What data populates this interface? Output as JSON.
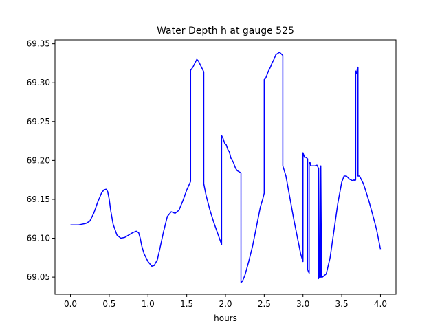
{
  "chart_data": {
    "type": "line",
    "title": "Water Depth h at gauge 525",
    "xlabel": "hours",
    "ylabel": "",
    "xlim": [
      -0.2,
      4.2
    ],
    "ylim": [
      69.028,
      69.355
    ],
    "x_ticks": [
      0.0,
      0.5,
      1.0,
      1.5,
      2.0,
      2.5,
      3.0,
      3.5,
      4.0
    ],
    "x_tick_labels": [
      "0.0",
      "0.5",
      "1.0",
      "1.5",
      "2.0",
      "2.5",
      "3.0",
      "3.5",
      "4.0"
    ],
    "y_ticks": [
      69.05,
      69.1,
      69.15,
      69.2,
      69.25,
      69.3,
      69.35
    ],
    "y_tick_labels": [
      "69.05",
      "69.10",
      "69.15",
      "69.20",
      "69.25",
      "69.30",
      "69.35"
    ],
    "grid": false,
    "legend": "none",
    "series": [
      {
        "color": "#0000ff",
        "x": [
          0.0,
          0.1,
          0.2,
          0.25,
          0.3,
          0.35,
          0.4,
          0.43,
          0.46,
          0.48,
          0.5,
          0.52,
          0.55,
          0.6,
          0.65,
          0.7,
          0.75,
          0.8,
          0.85,
          0.88,
          0.9,
          0.92,
          0.95,
          1.0,
          1.05,
          1.08,
          1.12,
          1.15,
          1.2,
          1.25,
          1.3,
          1.35,
          1.4,
          1.45,
          1.5,
          1.55,
          1.55,
          1.58,
          1.6,
          1.63,
          1.65,
          1.68,
          1.7,
          1.72,
          1.72,
          1.75,
          1.8,
          1.85,
          1.9,
          1.95,
          1.95,
          1.97,
          1.99,
          2.01,
          2.03,
          2.05,
          2.07,
          2.1,
          2.13,
          2.15,
          2.2,
          2.2,
          2.22,
          2.25,
          2.3,
          2.35,
          2.4,
          2.45,
          2.48,
          2.5,
          2.5,
          2.52,
          2.55,
          2.58,
          2.6,
          2.63,
          2.65,
          2.68,
          2.7,
          2.72,
          2.74,
          2.74,
          2.78,
          2.82,
          2.88,
          2.93,
          2.97,
          3.0,
          3.0,
          3.02,
          3.04,
          3.06,
          3.06,
          3.07,
          3.08,
          3.08,
          3.09,
          3.1,
          3.12,
          3.15,
          3.18,
          3.2,
          3.2,
          3.21,
          3.22,
          3.22,
          3.23,
          3.23,
          3.24,
          3.25,
          3.3,
          3.35,
          3.4,
          3.45,
          3.5,
          3.53,
          3.56,
          3.58,
          3.6,
          3.62,
          3.64,
          3.66,
          3.67,
          3.68,
          3.68,
          3.69,
          3.7,
          3.7,
          3.71,
          3.71,
          3.73,
          3.75,
          3.78,
          3.8,
          3.85,
          3.9,
          3.95,
          4.0
        ],
        "values": [
          69.117,
          69.117,
          69.119,
          69.122,
          69.132,
          69.146,
          69.158,
          69.162,
          69.163,
          69.16,
          69.15,
          69.135,
          69.118,
          69.104,
          69.1,
          69.101,
          69.104,
          69.107,
          69.109,
          69.107,
          69.1,
          69.09,
          69.08,
          69.07,
          69.064,
          69.065,
          69.072,
          69.085,
          69.108,
          69.128,
          69.134,
          69.132,
          69.136,
          69.148,
          69.162,
          69.173,
          69.316,
          69.32,
          69.324,
          69.33,
          69.328,
          69.322,
          69.318,
          69.314,
          69.17,
          69.155,
          69.136,
          69.12,
          69.106,
          69.092,
          69.232,
          69.228,
          69.222,
          69.22,
          69.214,
          69.211,
          69.203,
          69.198,
          69.19,
          69.187,
          69.184,
          69.043,
          69.045,
          69.052,
          69.07,
          69.09,
          69.115,
          69.14,
          69.15,
          69.158,
          69.304,
          69.306,
          69.314,
          69.32,
          69.325,
          69.331,
          69.336,
          69.338,
          69.339,
          69.337,
          69.335,
          69.193,
          69.18,
          69.158,
          69.125,
          69.1,
          69.08,
          69.07,
          69.21,
          69.204,
          69.204,
          69.202,
          69.06,
          69.057,
          69.055,
          69.196,
          69.198,
          69.193,
          69.193,
          69.193,
          69.194,
          69.19,
          69.048,
          69.05,
          69.19,
          69.05,
          69.05,
          69.193,
          69.05,
          69.05,
          69.054,
          69.075,
          69.11,
          69.145,
          69.172,
          69.18,
          69.18,
          69.178,
          69.176,
          69.175,
          69.174,
          69.175,
          69.174,
          69.175,
          69.315,
          69.312,
          69.317,
          69.316,
          69.32,
          69.18,
          69.18,
          69.176,
          69.17,
          69.164,
          69.148,
          69.13,
          69.111,
          69.086
        ]
      }
    ]
  }
}
